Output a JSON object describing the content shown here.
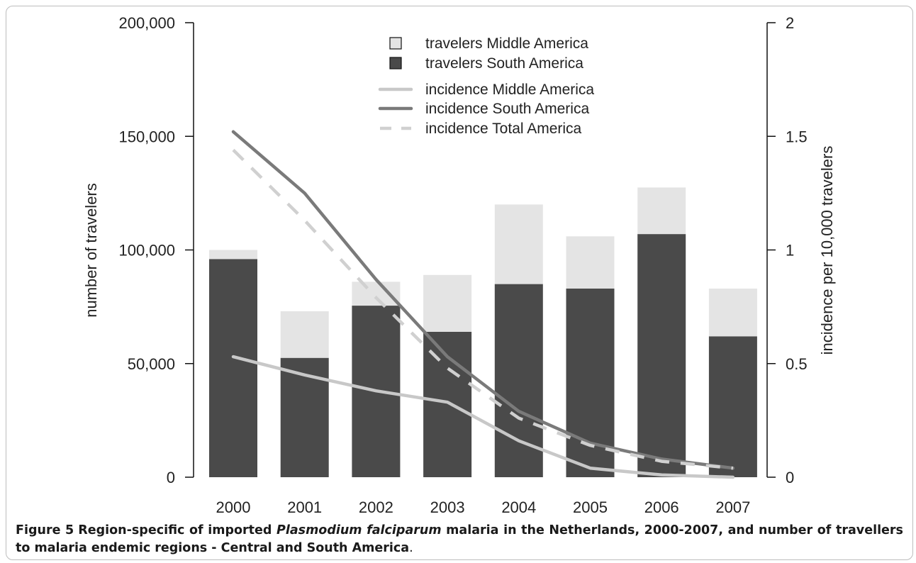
{
  "chart_data": {
    "type": "bar",
    "categories": [
      "2000",
      "2001",
      "2002",
      "2003",
      "2004",
      "2005",
      "2006",
      "2007"
    ],
    "stacked": true,
    "series": [
      {
        "name": "travelers South America",
        "kind": "bar",
        "axis": "left",
        "color": "#4a4a4a",
        "values": [
          96000,
          52500,
          75500,
          64000,
          85000,
          83000,
          107000,
          62000
        ]
      },
      {
        "name": "travelers Middle America",
        "kind": "bar",
        "axis": "left",
        "color": "#e4e4e4",
        "values": [
          4000,
          20500,
          10500,
          25000,
          35000,
          23000,
          20500,
          21000
        ]
      },
      {
        "name": "incidence Middle America",
        "kind": "line",
        "axis": "right",
        "color": "#c8c8c8",
        "dash": "solid",
        "values": [
          0.53,
          0.45,
          0.38,
          0.33,
          0.16,
          0.04,
          0.01,
          0.0
        ]
      },
      {
        "name": "incidence South America",
        "kind": "line",
        "axis": "right",
        "color": "#7a7a7a",
        "dash": "solid",
        "values": [
          1.52,
          1.25,
          0.87,
          0.53,
          0.29,
          0.15,
          0.08,
          0.04
        ]
      },
      {
        "name": "incidence Total America",
        "kind": "line",
        "axis": "right",
        "color": "#d0d0d0",
        "dash": "dashed",
        "values": [
          1.44,
          1.13,
          0.79,
          0.48,
          0.26,
          0.14,
          0.07,
          0.04
        ]
      }
    ],
    "title": "",
    "xlabel": "",
    "ylabel": "number of travelers",
    "y2label": "incidence per 10,000 travelers",
    "ylim": [
      0,
      200000
    ],
    "y2lim": [
      0,
      2
    ],
    "yticks": [
      "0",
      "50,000",
      "100,000",
      "150,000",
      "200,000"
    ],
    "y2ticks": [
      "0",
      "0.5",
      "1",
      "1.5",
      "2"
    ],
    "legend": {
      "placement": "top-center",
      "entries": [
        "travelers Middle America",
        "travelers South America",
        "incidence Middle America",
        "incidence South America",
        "incidence Total America"
      ]
    },
    "grid": false
  },
  "caption": {
    "label": "Figure 5",
    "text_before": "Region-specific of imported ",
    "italic": "Plasmodium falciparum",
    "text_after": " malaria in the Netherlands, 2000-2007, and number of travellers to malaria endemic regions - Central and South America",
    "end": "."
  }
}
